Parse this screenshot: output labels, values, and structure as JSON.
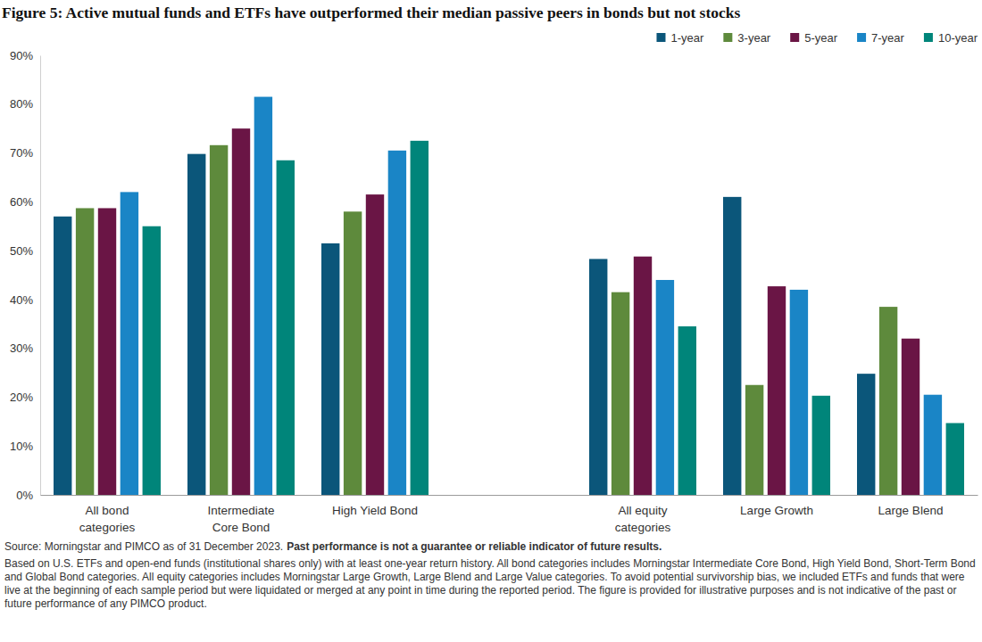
{
  "chart_data": {
    "type": "bar",
    "title": "Figure 5: Active mutual funds and ETFs have outperformed their median passive peers in bonds but not stocks",
    "categories": [
      "All bond categories",
      "Intermediate Core Bond",
      "High Yield Bond",
      null,
      "All equity categories",
      "Large Growth",
      "Large Blend"
    ],
    "series": [
      {
        "name": "1-year",
        "color": "#0b567a",
        "values": [
          57,
          69.8,
          51.5,
          null,
          48.3,
          61,
          24.8
        ]
      },
      {
        "name": "3-year",
        "color": "#5e8a3c",
        "values": [
          58.7,
          71.6,
          58,
          null,
          41.5,
          22.5,
          38.5
        ]
      },
      {
        "name": "5-year",
        "color": "#6a1545",
        "values": [
          58.7,
          75,
          61.5,
          null,
          48.8,
          42.7,
          32
        ]
      },
      {
        "name": "7-year",
        "color": "#1a85c6",
        "values": [
          62,
          81.5,
          70.5,
          null,
          44,
          42,
          20.5
        ]
      },
      {
        "name": "10-year",
        "color": "#00857a",
        "values": [
          55,
          68.5,
          72.5,
          null,
          34.5,
          20.3,
          14.7
        ]
      }
    ],
    "ylim": [
      0,
      90
    ],
    "yticks": [
      {
        "value": 0,
        "label": "0%"
      },
      {
        "value": 10,
        "label": "10%"
      },
      {
        "value": 20,
        "label": "20%"
      },
      {
        "value": 30,
        "label": "30%"
      },
      {
        "value": 40,
        "label": "40%"
      },
      {
        "value": 50,
        "label": "50%"
      },
      {
        "value": 60,
        "label": "60%"
      },
      {
        "value": 70,
        "label": "70%"
      },
      {
        "value": 80,
        "label": "80%"
      },
      {
        "value": 90,
        "label": "90%"
      }
    ],
    "grid": false,
    "legend": "upper right",
    "source": "Source: Morningstar and PIMCO as of 31 December 2023.",
    "disclaimer": "Past performance is not a guarantee or reliable indicator of future results.",
    "note": "Based on U.S. ETFs and open-end funds (institutional shares only) with at least one-year return history. All bond categories includes Morningstar Intermediate Core Bond, High Yield Bond, Short-Term Bond and Global Bond categories. All equity categories includes Morningstar Large Growth, Large Blend and Large Value categories. To avoid potential survivorship bias, we included ETFs and funds that were live at the beginning of each sample period but were liquidated or merged at any point in time during the reported period. The figure is provided for illustrative purposes and is not indicative of the past or future performance of any PIMCO product."
  }
}
